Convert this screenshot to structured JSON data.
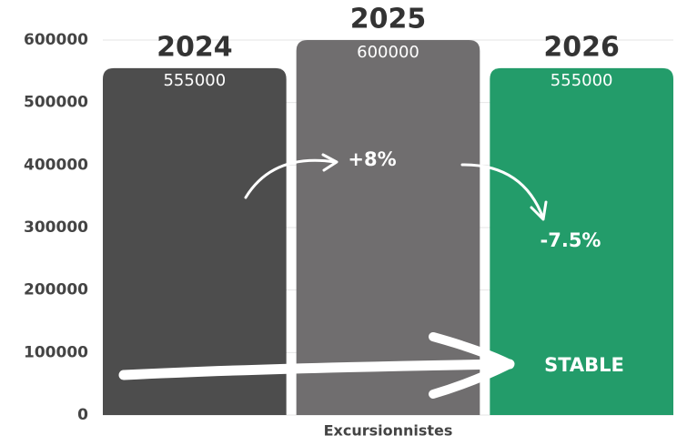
{
  "chart_data": {
    "type": "bar",
    "categories": [
      "Excursionnistes"
    ],
    "series": [
      {
        "name": "2024",
        "color": "#4d4d4d",
        "values": [
          555000
        ]
      },
      {
        "name": "2025",
        "color": "#706e6f",
        "values": [
          600000
        ]
      },
      {
        "name": "2026",
        "color": "#239c6a",
        "values": [
          555000
        ]
      }
    ],
    "annotations": [
      "+8%",
      "-7.5%",
      "STABLE"
    ],
    "ylim": [
      0,
      600000
    ],
    "yticks": [
      0,
      100000,
      200000,
      300000,
      400000,
      500000,
      600000
    ],
    "grid": true
  }
}
